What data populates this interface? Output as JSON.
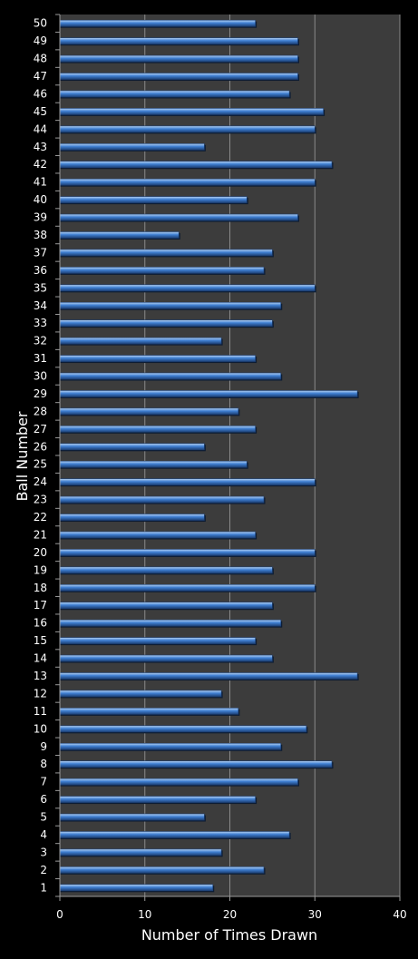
{
  "chart_data": {
    "type": "bar",
    "orientation": "horizontal",
    "xlabel": "Number of Times Drawn",
    "ylabel": "Ball Number",
    "xlim": [
      0,
      40
    ],
    "x_ticks": [
      "0",
      "10",
      "20",
      "30",
      "40"
    ],
    "grid": "vertical",
    "legend": "none",
    "colors": {
      "background": "#000000",
      "plot_area": "#3c3c3c",
      "gridline": "#8a8a8a",
      "bar": "#3f7fd2",
      "bar_highlight": "#b8d4f4",
      "bar_shadow": "#1c3f74",
      "text": "#ffffff"
    },
    "categories": [
      "1",
      "2",
      "3",
      "4",
      "5",
      "6",
      "7",
      "8",
      "9",
      "10",
      "11",
      "12",
      "13",
      "14",
      "15",
      "16",
      "17",
      "18",
      "19",
      "20",
      "21",
      "22",
      "23",
      "24",
      "25",
      "26",
      "27",
      "28",
      "29",
      "30",
      "31",
      "32",
      "33",
      "34",
      "35",
      "36",
      "37",
      "38",
      "39",
      "40",
      "41",
      "42",
      "43",
      "44",
      "45",
      "46",
      "47",
      "48",
      "49",
      "50"
    ],
    "values": [
      18,
      24,
      19,
      27,
      17,
      23,
      28,
      32,
      26,
      29,
      21,
      19,
      35,
      25,
      23,
      26,
      25,
      30,
      25,
      30,
      23,
      17,
      24,
      30,
      22,
      17,
      23,
      21,
      35,
      26,
      23,
      19,
      25,
      26,
      30,
      24,
      25,
      14,
      28,
      22,
      30,
      32,
      17,
      30,
      31,
      27,
      28,
      28,
      28,
      23
    ]
  }
}
